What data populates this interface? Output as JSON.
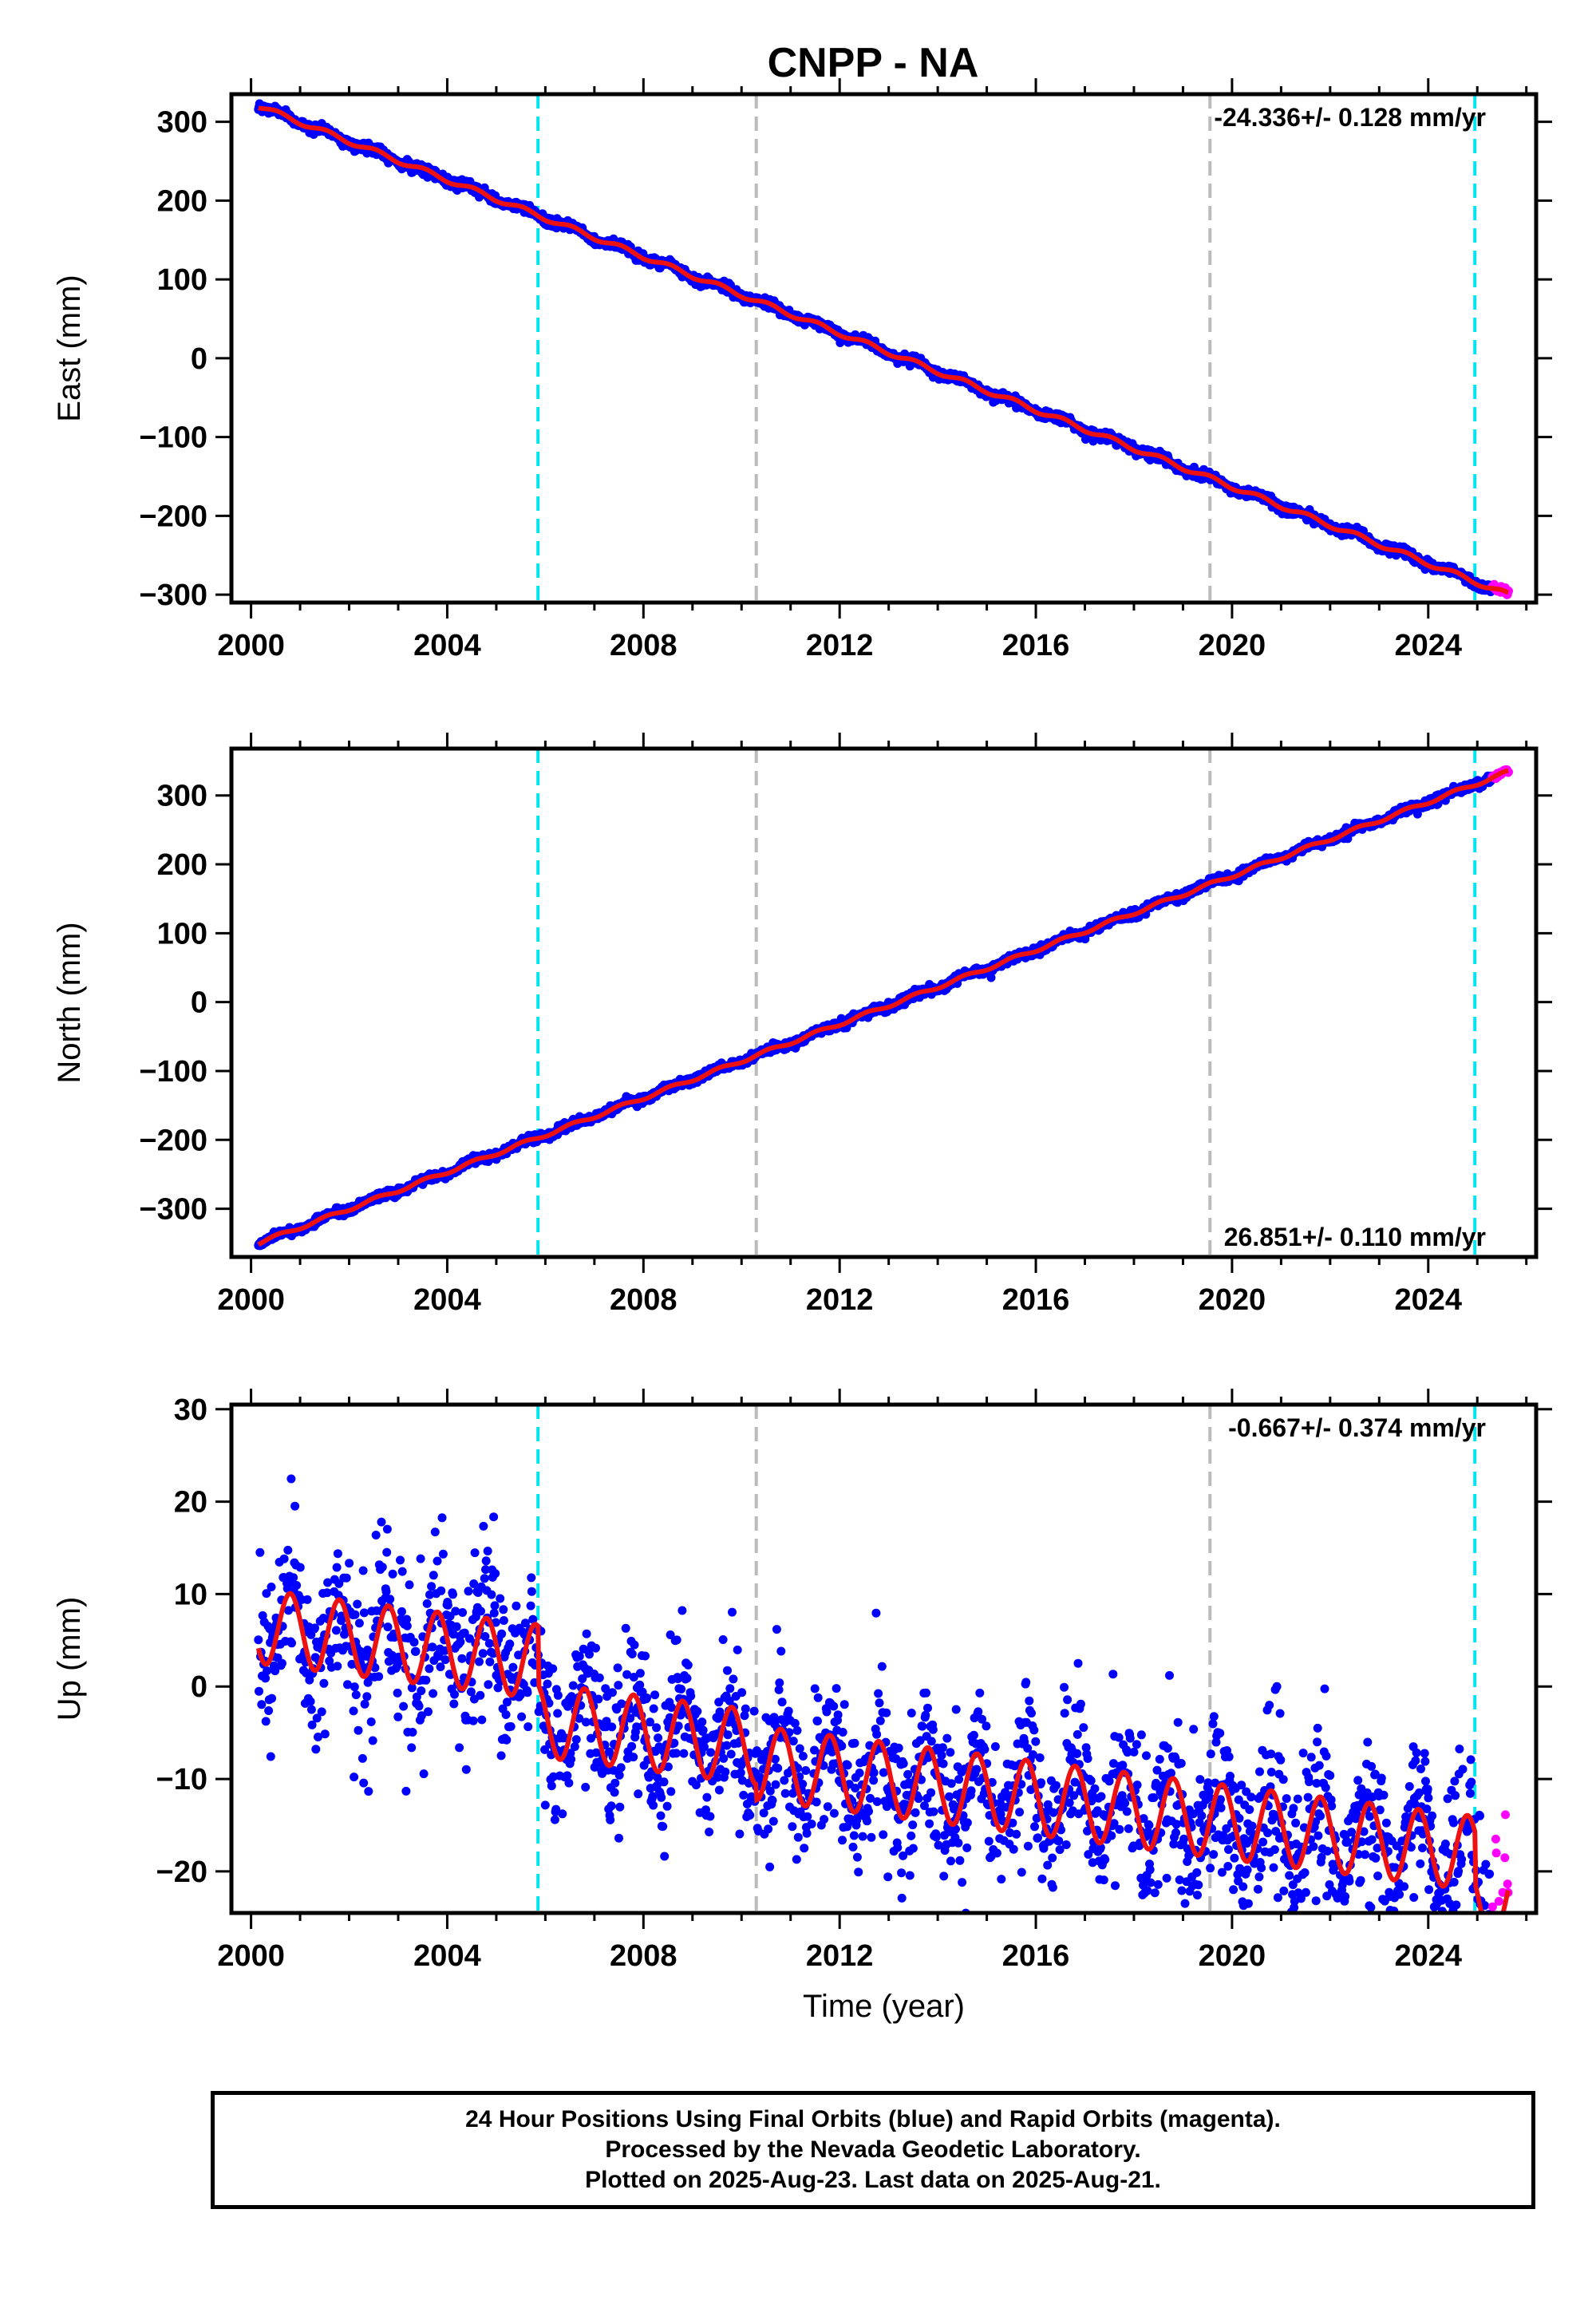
{
  "title": "CNPP - NA",
  "colors": {
    "final_orbits": "#0000ff",
    "rapid_orbits": "#ff00ff",
    "model": "#ee1111",
    "equipment_change": "#00e5ee",
    "other_event": "#bbbbbb"
  },
  "event_lines": [
    {
      "year": 2005.85,
      "color_key": "equipment_change"
    },
    {
      "year": 2010.3,
      "color_key": "other_event"
    },
    {
      "year": 2019.55,
      "color_key": "other_event"
    },
    {
      "year": 2024.95,
      "color_key": "equipment_change"
    }
  ],
  "chart_data": [
    {
      "type": "scatter",
      "component": "east",
      "ylabel": "East (mm)",
      "xlabel": "",
      "xlim": [
        1999.6,
        2026.2
      ],
      "ylim": [
        -310,
        335
      ],
      "xticks": [
        2000,
        2004,
        2008,
        2012,
        2016,
        2020,
        2024
      ],
      "yticks": [
        300,
        200,
        100,
        0,
        -100,
        -200,
        -300
      ],
      "ytick_labels": [
        "300",
        "200",
        "100",
        "0",
        "−100",
        "−200",
        "−300"
      ],
      "rate_text": "-24.336+/- 0.128 mm/yr",
      "rate_position": "top-right",
      "series": [
        {
          "name": "Final Orbits",
          "color_key": "final_orbits",
          "x_range": [
            2000.15,
            2025.3
          ],
          "trend": {
            "t0": 2000.15,
            "y0": 320,
            "rate": -24.336
          },
          "seasonal_amplitude": 3,
          "scatter": 3
        },
        {
          "name": "Rapid Orbits",
          "color_key": "rapid_orbits",
          "x_range": [
            2025.3,
            2025.64
          ],
          "trend": {
            "t0": 2000.15,
            "y0": 320,
            "rate": -24.336
          },
          "seasonal_amplitude": 3,
          "scatter": 2
        }
      ]
    },
    {
      "type": "scatter",
      "component": "north",
      "ylabel": "North (mm)",
      "xlabel": "",
      "xlim": [
        1999.6,
        2026.2
      ],
      "ylim": [
        -370,
        368
      ],
      "xticks": [
        2000,
        2004,
        2008,
        2012,
        2016,
        2020,
        2024
      ],
      "yticks": [
        300,
        200,
        100,
        0,
        -100,
        -200,
        -300
      ],
      "ytick_labels": [
        "300",
        "200",
        "100",
        "0",
        "−100",
        "−200",
        "−300"
      ],
      "rate_text": "26.851+/- 0.110 mm/yr",
      "rate_position": "bottom-right",
      "series": [
        {
          "name": "Final Orbits",
          "color_key": "final_orbits",
          "x_range": [
            2000.15,
            2025.3
          ],
          "trend": {
            "t0": 2000.15,
            "y0": -350,
            "rate": 26.851
          },
          "seasonal_amplitude": 2.5,
          "scatter": 3
        },
        {
          "name": "Rapid Orbits",
          "color_key": "rapid_orbits",
          "x_range": [
            2025.3,
            2025.64
          ],
          "trend": {
            "t0": 2000.15,
            "y0": -350,
            "rate": 26.851
          },
          "seasonal_amplitude": 2.5,
          "scatter": 2
        }
      ]
    },
    {
      "type": "scatter",
      "component": "up",
      "ylabel": "Up (mm)",
      "xlabel": "Time (year)",
      "xlim": [
        1999.6,
        2026.2
      ],
      "ylim": [
        -24.5,
        30.5
      ],
      "xticks": [
        2000,
        2004,
        2008,
        2012,
        2016,
        2020,
        2024
      ],
      "yticks": [
        30,
        20,
        10,
        0,
        -10,
        -20
      ],
      "ytick_labels": [
        "30",
        "20",
        "10",
        "0",
        "−10",
        "−20"
      ],
      "rate_text": "-0.667+/- 0.374 mm/yr",
      "rate_position": "top-right",
      "model_offsets": [
        {
          "year": 2000.15,
          "level": 6.5
        },
        {
          "year": 2005.85,
          "level": 0.2
        },
        {
          "year": 2010.3,
          "level": -1.5
        },
        {
          "year": 2024.95,
          "level": -7
        }
      ],
      "seasonal_amplitude": 4,
      "rate": -0.667,
      "series": [
        {
          "name": "Final Orbits",
          "color_key": "final_orbits",
          "x_range": [
            2000.15,
            2025.3
          ],
          "scatter": 4.2
        },
        {
          "name": "Rapid Orbits",
          "color_key": "rapid_orbits",
          "x_range": [
            2025.3,
            2025.64
          ],
          "scatter": 5
        }
      ]
    }
  ],
  "footer": {
    "line1": "24 Hour Positions Using Final Orbits (blue) and Rapid Orbits (magenta).",
    "line2": "Processed by the Nevada Geodetic Laboratory.",
    "line3": "Plotted on 2025-Aug-23. Last data on 2025-Aug-21."
  }
}
